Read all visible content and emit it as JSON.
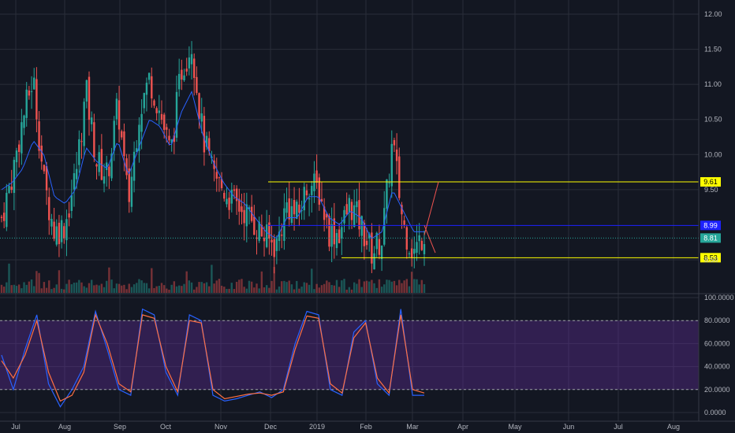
{
  "chart_data": [
    {
      "type": "candlestick",
      "title": "",
      "ylim": [
        8.2,
        12.05
      ],
      "y_ticks": [
        "12.00",
        "11.50",
        "11.00",
        "10.50",
        "10.00",
        "9.50",
        "8.50"
      ],
      "x_ticks": [
        "Jul",
        "Aug",
        "Sep",
        "Oct",
        "Nov",
        "Dec",
        "2019",
        "Feb",
        "Mar",
        "Apr",
        "May",
        "Jun",
        "Jul",
        "Aug"
      ],
      "grid": true,
      "colors": {
        "up": "#26a69a",
        "down": "#ef5350",
        "background": "#131722",
        "ma": "#2962ff",
        "grid": "#2a2e39"
      },
      "approx_closes": [
        9.1,
        9.7,
        10.5,
        11.1,
        9.6,
        8.9,
        9.0,
        9.7,
        10.9,
        9.9,
        9.7,
        10.7,
        9.3,
        10.6,
        11.1,
        10.6,
        10.0,
        11.2,
        11.6,
        10.3,
        9.7,
        9.5,
        9.3,
        9.2,
        9.0,
        8.8,
        8.7,
        9.3,
        9.1,
        9.6,
        9.5,
        8.9,
        8.9,
        9.3,
        9.0,
        8.6,
        8.8,
        10.2,
        9.0,
        8.6,
        8.9
      ],
      "moving_average": [
        9.5,
        9.6,
        9.8,
        10.2,
        10.0,
        9.4,
        9.3,
        9.5,
        10.1,
        9.9,
        9.8,
        10.2,
        9.7,
        10.1,
        10.5,
        10.4,
        10.1,
        10.6,
        10.9,
        10.3,
        9.9,
        9.6,
        9.4,
        9.3,
        9.1,
        8.9,
        8.8,
        9.1,
        9.1,
        9.4,
        9.4,
        9.1,
        9.0,
        9.2,
        9.1,
        8.8,
        8.9,
        9.5,
        9.2,
        8.9,
        8.9
      ],
      "horizontal_lines": [
        {
          "label": "9.61",
          "value": 9.61,
          "color": "#ffff00",
          "style": "solid"
        },
        {
          "label": "8.99",
          "value": 8.99,
          "color": "#1e22ff",
          "style": "solid"
        },
        {
          "label": "8.81",
          "value": 8.81,
          "color": "#26a69a",
          "style": "dotted"
        },
        {
          "label": "8.53",
          "value": 8.53,
          "color": "#ffff00",
          "style": "solid"
        }
      ],
      "projection_line": {
        "from_value": 8.85,
        "to_value": 9.61,
        "color": "#ef5350"
      }
    },
    {
      "type": "line",
      "indicator": "stochastic",
      "ylim": [
        -5,
        105
      ],
      "y_ticks": [
        "100.0000",
        "80.0000",
        "60.0000",
        "40.0000",
        "20.0000",
        "0.0000"
      ],
      "band": [
        20,
        80
      ],
      "series": [
        {
          "color": "#2962ff",
          "values": [
            50,
            20,
            55,
            85,
            25,
            5,
            20,
            40,
            88,
            55,
            20,
            15,
            90,
            85,
            35,
            15,
            85,
            80,
            15,
            10,
            12,
            15,
            18,
            13,
            20,
            60,
            88,
            85,
            20,
            15,
            70,
            80,
            25,
            15,
            90,
            15,
            15
          ]
        },
        {
          "color": "#ff7043",
          "values": [
            45,
            30,
            50,
            80,
            35,
            10,
            15,
            35,
            85,
            60,
            25,
            18,
            85,
            82,
            40,
            18,
            80,
            78,
            20,
            12,
            14,
            16,
            17,
            15,
            18,
            55,
            84,
            82,
            25,
            17,
            65,
            78,
            30,
            17,
            85,
            20,
            17
          ]
        }
      ]
    }
  ]
}
